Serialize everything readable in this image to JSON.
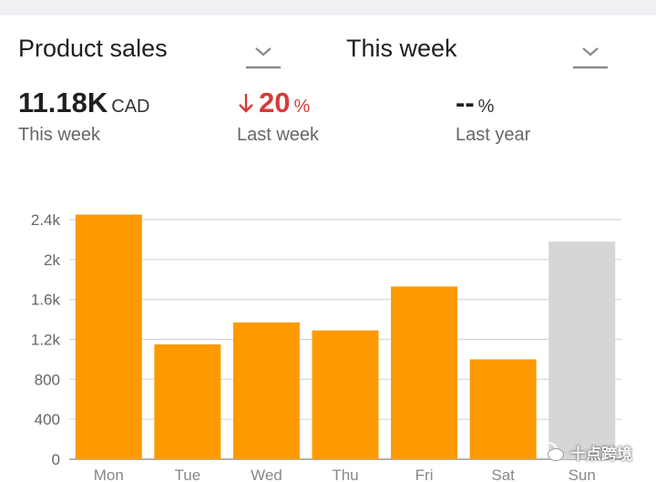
{
  "header": {
    "metric_dropdown": {
      "label": "Product sales",
      "icon": "chevron-down-icon"
    },
    "period_dropdown": {
      "label": "This week",
      "icon": "chevron-down-icon"
    }
  },
  "stats": {
    "total": {
      "value": "11.18K",
      "unit": "CAD",
      "caption": "This week"
    },
    "vs_last_week": {
      "direction": "down",
      "value": "20",
      "unit": "%",
      "caption": "Last week",
      "color": "#d93a3a"
    },
    "vs_last_year": {
      "value": "--",
      "unit": "%",
      "caption": "Last year"
    }
  },
  "chart_data": {
    "type": "bar",
    "categories": [
      "Mon",
      "Tue",
      "Wed",
      "Thu",
      "Fri",
      "Sat",
      "Sun"
    ],
    "values": [
      2450,
      1150,
      1370,
      1290,
      1730,
      1000,
      2180
    ],
    "bar_colors": [
      "#ff9a00",
      "#ff9a00",
      "#ff9a00",
      "#ff9a00",
      "#ff9a00",
      "#ff9a00",
      "#d4d6d8"
    ],
    "y_ticks": [
      0,
      400,
      800,
      1200,
      1600,
      2000,
      2400
    ],
    "y_tick_labels": [
      "0",
      "400",
      "800",
      "1.2k",
      "1.6k",
      "2k",
      "2.4k"
    ],
    "ylim": [
      0,
      2400
    ],
    "grid": true,
    "title": "",
    "xlabel": "",
    "ylabel": ""
  },
  "watermark": {
    "text": "十点跨境",
    "icon": "wechat-icon"
  }
}
